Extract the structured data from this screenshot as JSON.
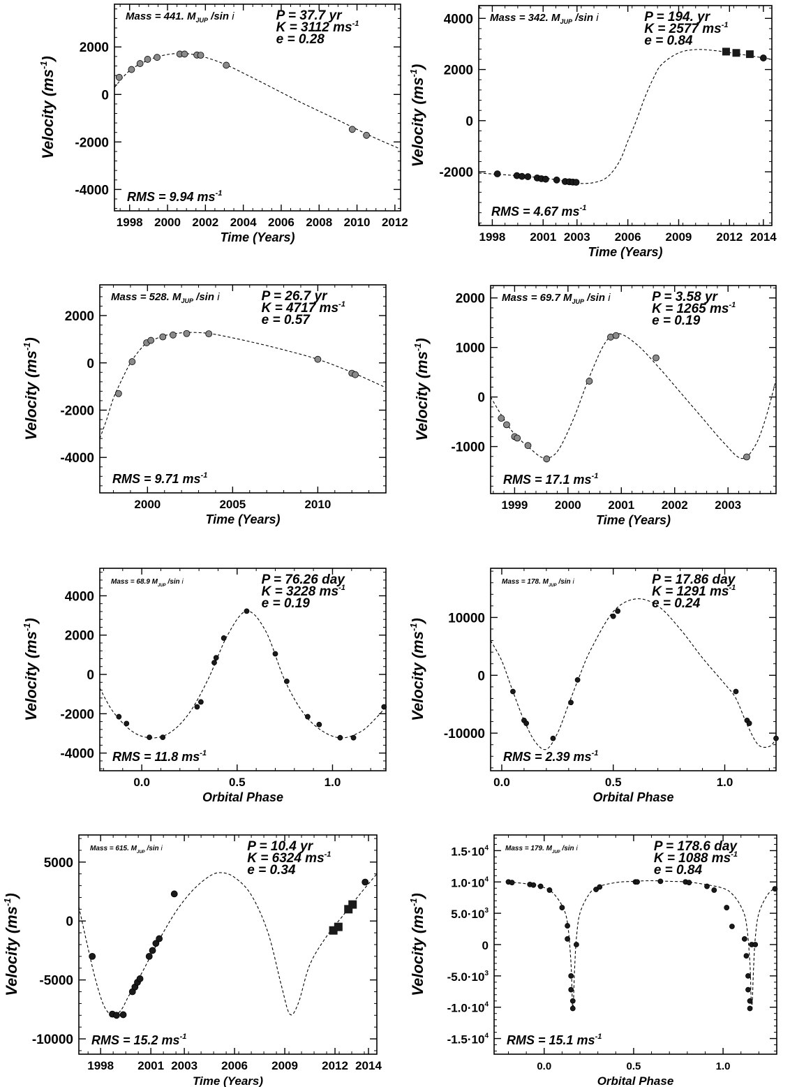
{
  "colors": {
    "ink": "#000000",
    "point_gray": "#8a8a8a",
    "point_black": "#1a1a1a",
    "curve": "#000000"
  },
  "chart_data": [
    {
      "id": "p1",
      "type": "scatter",
      "xlabel": "Time  (Years)",
      "ylabel": "Velocity",
      "xlim": [
        1997.2,
        2012.3
      ],
      "ylim": [
        -4900,
        3800
      ],
      "xticks": [
        1998,
        2000,
        2002,
        2004,
        2006,
        2008,
        2010,
        2012
      ],
      "yticks": [
        -4000,
        -2000,
        0,
        2000
      ],
      "annotations": {
        "mass": "441.",
        "P": "37.7 yr",
        "K": "3112",
        "e": "0.28",
        "rms": "9.94"
      },
      "ann_size": 15,
      "series": [
        {
          "name": "",
          "marker": "circle",
          "color": "gray",
          "size": 4.5,
          "x": [
            1997.45,
            1998.1,
            1998.55,
            1998.95,
            1999.45,
            2000.65,
            2000.9,
            2001.55,
            2001.75,
            2003.1,
            2009.75,
            2010.5
          ],
          "y": [
            720,
            1050,
            1300,
            1480,
            1560,
            1700,
            1700,
            1660,
            1650,
            1230,
            -1470,
            -1720
          ]
        }
      ],
      "fit": {
        "x": [
          1997.2,
          1998,
          1999,
          2000,
          2001,
          2002,
          2003,
          2004,
          2005,
          2006,
          2007,
          2008,
          2009,
          2010,
          2011,
          2012.3
        ],
        "y": [
          300,
          1000,
          1450,
          1680,
          1720,
          1560,
          1280,
          900,
          500,
          90,
          -320,
          -700,
          -1080,
          -1470,
          -1850,
          -2300
        ]
      }
    },
    {
      "id": "p2",
      "type": "scatter",
      "xlabel": "Time (Years)",
      "ylabel": "Velocity",
      "xlim": [
        1997.2,
        2014.5
      ],
      "ylim": [
        -4100,
        4500
      ],
      "xticks": [
        1998,
        2001,
        2003,
        2006,
        2009,
        2012,
        2014
      ],
      "yticks": [
        -2000,
        0,
        2000,
        4000
      ],
      "annotations": {
        "mass": "342.",
        "P": "194. yr",
        "K": "2577",
        "e": "0.84",
        "rms": "4.67"
      },
      "ann_size": 15,
      "series": [
        {
          "name": "",
          "marker": "circle",
          "color": "black",
          "size": 4.5,
          "x": [
            1998.3,
            1999.45,
            1999.75,
            2000.1,
            2000.65,
            2000.9,
            2001.15,
            2001.8,
            2002.3,
            2002.55,
            2002.75,
            2002.95,
            2014.0
          ],
          "y": [
            -2080,
            -2150,
            -2180,
            -2190,
            -2240,
            -2270,
            -2290,
            -2320,
            -2380,
            -2390,
            -2400,
            -2410,
            2450
          ]
        },
        {
          "name": "",
          "marker": "square",
          "color": "black",
          "size": 5.5,
          "x": [
            2011.8,
            2012.4,
            2013.2
          ],
          "y": [
            2700,
            2650,
            2600
          ]
        }
      ],
      "fit": {
        "x": [
          1997.2,
          1999,
          2001,
          2002,
          2003,
          2004,
          2004.8,
          2005.5,
          2006,
          2006.5,
          2007,
          2007.5,
          2008,
          2009,
          2010,
          2011,
          2012,
          2013,
          2014.5
        ],
        "y": [
          -2050,
          -2130,
          -2240,
          -2340,
          -2450,
          -2420,
          -2200,
          -1600,
          -800,
          0,
          900,
          1650,
          2200,
          2650,
          2780,
          2750,
          2660,
          2560,
          2400
        ]
      }
    },
    {
      "id": "p3",
      "type": "scatter",
      "xlabel": "Time  (Years)",
      "ylabel": "Velocity",
      "xlim": [
        1997.2,
        2014.0
      ],
      "ylim": [
        -5500,
        3300
      ],
      "xticks": [
        2000,
        2005,
        2010
      ],
      "yticks": [
        -4000,
        -2000,
        0,
        2000
      ],
      "annotations": {
        "mass": "528.",
        "P": "26.7 yr",
        "K": "4717",
        "e": "0.57",
        "rms": "9.71"
      },
      "ann_size": 15,
      "series": [
        {
          "name": "",
          "marker": "circle",
          "color": "gray",
          "size": 4.5,
          "x": [
            1998.3,
            1999.1,
            1999.95,
            2000.2,
            2000.9,
            2001.5,
            2002.3,
            2003.6,
            2010.0,
            2012.0,
            2012.2
          ],
          "y": [
            -1300,
            50,
            850,
            950,
            1100,
            1180,
            1240,
            1230,
            150,
            -440,
            -500
          ]
        }
      ],
      "fit": {
        "x": [
          1997.2,
          1997.6,
          1998,
          1998.5,
          1999,
          1999.5,
          2000,
          2001,
          2002,
          2003,
          2004,
          2006,
          2008,
          2010,
          2012,
          2014
        ],
        "y": [
          -3200,
          -2400,
          -1500,
          -700,
          0,
          500,
          850,
          1150,
          1270,
          1280,
          1200,
          900,
          550,
          150,
          -400,
          -1050
        ]
      }
    },
    {
      "id": "p4",
      "type": "scatter",
      "xlabel": "Time  (Years)",
      "ylabel": "Velocity",
      "xlim": [
        1998.55,
        2003.9
      ],
      "ylim": [
        -1950,
        2250
      ],
      "xticks": [
        1999,
        2000,
        2001,
        2002,
        2003
      ],
      "yticks": [
        -1000,
        0,
        1000,
        2000
      ],
      "annotations": {
        "mass": "69.7",
        "P": "3.58 yr",
        "K": "1265",
        "e": "0.19",
        "rms": "17.1"
      },
      "ann_size": 15,
      "series": [
        {
          "name": "",
          "marker": "circle",
          "color": "gray",
          "size": 4.5,
          "x": [
            1998.75,
            1998.85,
            1999.0,
            1999.05,
            1999.25,
            1999.6,
            2000.4,
            2000.8,
            2000.9,
            2001.65,
            2003.35
          ],
          "y": [
            -430,
            -560,
            -800,
            -830,
            -980,
            -1250,
            320,
            1210,
            1240,
            790,
            -1210
          ]
        }
      ],
      "fit": {
        "x": [
          1998.55,
          1998.8,
          1999.0,
          1999.3,
          1999.55,
          1999.8,
          2000.1,
          2000.4,
          2000.7,
          2000.95,
          2001.3,
          2001.7,
          2002.1,
          2002.5,
          2002.9,
          2003.25,
          2003.5,
          2003.7,
          2003.9
        ],
        "y": [
          0,
          -450,
          -750,
          -1050,
          -1230,
          -1100,
          -450,
          400,
          1100,
          1280,
          1050,
          600,
          100,
          -400,
          -900,
          -1240,
          -1000,
          -450,
          350
        ]
      }
    },
    {
      "id": "p5",
      "type": "scatter",
      "xlabel": "Orbital Phase",
      "ylabel": "Velocity",
      "xlim": [
        -0.22,
        1.28
      ],
      "ylim": [
        -4900,
        5400
      ],
      "xticks": [
        0.0,
        0.5,
        1.0
      ],
      "xtick_labels": [
        "0.0",
        "0.5",
        "1.0"
      ],
      "yticks": [
        -4000,
        -2000,
        0,
        2000,
        4000
      ],
      "annotations": {
        "mass": "68.9",
        "P": "76.26 day",
        "K": "3228",
        "e": "0.19",
        "rms": "11.8"
      },
      "ann_size": 10,
      "series": [
        {
          "name": "",
          "marker": "circle",
          "color": "black",
          "size": 3.5,
          "x": [
            -0.12,
            -0.08,
            0.04,
            0.11,
            0.29,
            0.31,
            0.38,
            0.39,
            0.43,
            0.55,
            0.7,
            0.76,
            0.87,
            0.93,
            1.04,
            1.11,
            1.27
          ],
          "y": [
            -2150,
            -2500,
            -3200,
            -3200,
            -1650,
            -1400,
            600,
            850,
            1850,
            3220,
            1050,
            -350,
            -2150,
            -2550,
            -3220,
            -3220,
            -1650
          ]
        }
      ],
      "fit": {
        "x": [
          -0.22,
          -0.15,
          -0.05,
          0.05,
          0.15,
          0.25,
          0.35,
          0.45,
          0.55,
          0.65,
          0.75,
          0.85,
          0.95,
          1.05,
          1.15,
          1.22,
          1.28
        ],
        "y": [
          -700,
          -1900,
          -2900,
          -3230,
          -2950,
          -1950,
          -200,
          2000,
          3220,
          2200,
          -300,
          -2000,
          -2900,
          -3230,
          -2900,
          -2300,
          -1650
        ]
      }
    },
    {
      "id": "p6",
      "type": "scatter",
      "xlabel": "Orbital Phase",
      "ylabel": "Velocity",
      "xlim": [
        -0.05,
        1.23
      ],
      "ylim": [
        -16500,
        18500
      ],
      "xticks": [
        0.0,
        0.5,
        1.0
      ],
      "xtick_labels": [
        "0.0",
        "0.5",
        "1.0"
      ],
      "yticks": [
        -10000,
        0,
        10000
      ],
      "annotations": {
        "mass": "178.",
        "P": "17.86 day",
        "K": "1291",
        "e": "0.24",
        "rms": "2.39"
      },
      "ann_size": 10,
      "series": [
        {
          "name": "",
          "marker": "circle",
          "color": "black",
          "size": 3.5,
          "x": [
            0.05,
            0.1,
            0.11,
            0.23,
            0.31,
            0.34,
            0.5,
            0.52,
            1.05,
            1.1,
            1.11,
            1.23
          ],
          "y": [
            -2800,
            -7800,
            -8300,
            -10900,
            -4700,
            -800,
            10200,
            11100,
            -2800,
            -7800,
            -8300,
            -10900
          ]
        }
      ],
      "fit": {
        "x": [
          -0.05,
          0.0,
          0.05,
          0.1,
          0.15,
          0.2,
          0.25,
          0.3,
          0.35,
          0.4,
          0.5,
          0.6,
          0.7,
          0.8,
          0.9,
          1.0,
          1.05,
          1.1,
          1.15,
          1.2,
          1.23
        ],
        "y": [
          6000,
          2500,
          -2800,
          -7800,
          -11500,
          -12800,
          -10000,
          -5000,
          0,
          4500,
          11000,
          13200,
          12000,
          8000,
          3000,
          -1500,
          -4000,
          -8500,
          -12000,
          -12300,
          -11000
        ]
      }
    },
    {
      "id": "p7",
      "type": "scatter",
      "xlabel": "Time (Years)",
      "ylabel": "Velocity",
      "xlim": [
        1996.7,
        2014.5
      ],
      "ylim": [
        -11300,
        7300
      ],
      "xticks": [
        1998,
        2001,
        2003,
        2006,
        2009,
        2012,
        2014
      ],
      "yticks": [
        -10000,
        -5000,
        0,
        5000
      ],
      "annotations": {
        "mass": "615.",
        "P": "10.4 yr",
        "K": "6324",
        "e": "0.34",
        "rms": "15.2"
      },
      "ann_size": 10,
      "series": [
        {
          "name": "",
          "marker": "circle",
          "color": "black",
          "size": 4.5,
          "x": [
            1997.5,
            1998.7,
            1998.95,
            1999.35,
            1999.9,
            2000.05,
            2000.2,
            2000.35,
            2000.9,
            2001.1,
            2001.3,
            2001.5,
            2002.4,
            2013.8
          ],
          "y": [
            -3000,
            -7900,
            -8000,
            -7950,
            -6000,
            -5600,
            -5200,
            -4900,
            -3000,
            -2500,
            -1900,
            -1500,
            2300,
            3300
          ]
        },
        {
          "name": "",
          "marker": "square",
          "color": "black",
          "size": 6,
          "x": [
            2011.9,
            2012.2,
            2012.8,
            2013.05
          ],
          "y": [
            -800,
            -500,
            1000,
            1400
          ]
        }
      ],
      "fit": {
        "x": [
          1996.7,
          1997.2,
          1997.7,
          1998.2,
          1998.7,
          1999.2,
          1999.7,
          2000.5,
          2001.5,
          2002.5,
          2003.5,
          2004.5,
          2005.2,
          2006,
          2007,
          2008,
          2008.8,
          2009.3,
          2009.8,
          2010.5,
          2011.5,
          2012.5,
          2013.5,
          2014.5
        ],
        "y": [
          1200,
          -2000,
          -5000,
          -7200,
          -8000,
          -7600,
          -6300,
          -4300,
          -1600,
          800,
          2600,
          3800,
          4100,
          3700,
          2200,
          -1000,
          -5500,
          -7900,
          -7000,
          -3700,
          -1300,
          500,
          2300,
          4000
        ]
      }
    },
    {
      "id": "p8",
      "type": "scatter",
      "xlabel": "Orbital Phase",
      "ylabel": "Velocity",
      "xlim": [
        -0.28,
        1.3
      ],
      "ylim": [
        -17500,
        17500
      ],
      "xticks": [
        0.0,
        0.5,
        1.0
      ],
      "xtick_labels": [
        "0.0",
        "0.5",
        "1.0"
      ],
      "yticks": [
        -15000,
        -10000,
        -5000,
        0,
        5000,
        10000,
        15000
      ],
      "ytick_labels": [
        "-1.5·10",
        "-1.0·10",
        "-5.0·10",
        "0",
        "5.0·10",
        "1.0·10",
        "1.5·10"
      ],
      "ytick_exps": [
        "4",
        "4",
        "3",
        "",
        "3",
        "4",
        "4"
      ],
      "annotations": {
        "mass": "179.",
        "P": "178.6 day",
        "K": "1088",
        "e": "0.84",
        "rms": "15.1"
      },
      "ann_size": 10,
      "series": [
        {
          "name": "",
          "marker": "circle",
          "color": "black",
          "size": 3.5,
          "x": [
            -0.2,
            -0.18,
            -0.08,
            -0.06,
            -0.02,
            0.03,
            0.1,
            0.13,
            0.13,
            0.15,
            0.15,
            0.16,
            0.16,
            0.18,
            0.29,
            0.31,
            0.51,
            0.52,
            0.65,
            0.79,
            0.81,
            0.91,
            0.95,
            1.02,
            1.05,
            1.12,
            1.13,
            1.14,
            1.14,
            1.15,
            1.15,
            1.16,
            1.18,
            1.29
          ],
          "y": [
            10000,
            9900,
            9600,
            9500,
            9300,
            8700,
            5900,
            3000,
            900,
            -5000,
            -7200,
            -9000,
            -10200,
            0,
            8800,
            9200,
            10000,
            10000,
            10100,
            10000,
            9900,
            9300,
            8700,
            5900,
            2900,
            900,
            -1800,
            -5000,
            -7200,
            -9000,
            -10200,
            0,
            0,
            8900
          ]
        }
      ],
      "fit": {
        "x": [
          -0.2,
          -0.1,
          0.0,
          0.05,
          0.1,
          0.13,
          0.15,
          0.16,
          0.17,
          0.18,
          0.2,
          0.25,
          0.3,
          0.4,
          0.5,
          0.6,
          0.7,
          0.8,
          0.9,
          1.0,
          1.05,
          1.1,
          1.13,
          1.15,
          1.16,
          1.17,
          1.18,
          1.2,
          1.25,
          1.3
        ],
        "y": [
          10000,
          9700,
          9100,
          8200,
          6200,
          3500,
          -3000,
          -10500,
          -4000,
          1000,
          5000,
          8000,
          9200,
          9900,
          10100,
          10200,
          10100,
          10000,
          9600,
          9000,
          8100,
          6100,
          3400,
          -3000,
          -10500,
          -4000,
          1000,
          5000,
          8000,
          9200
        ]
      }
    }
  ]
}
